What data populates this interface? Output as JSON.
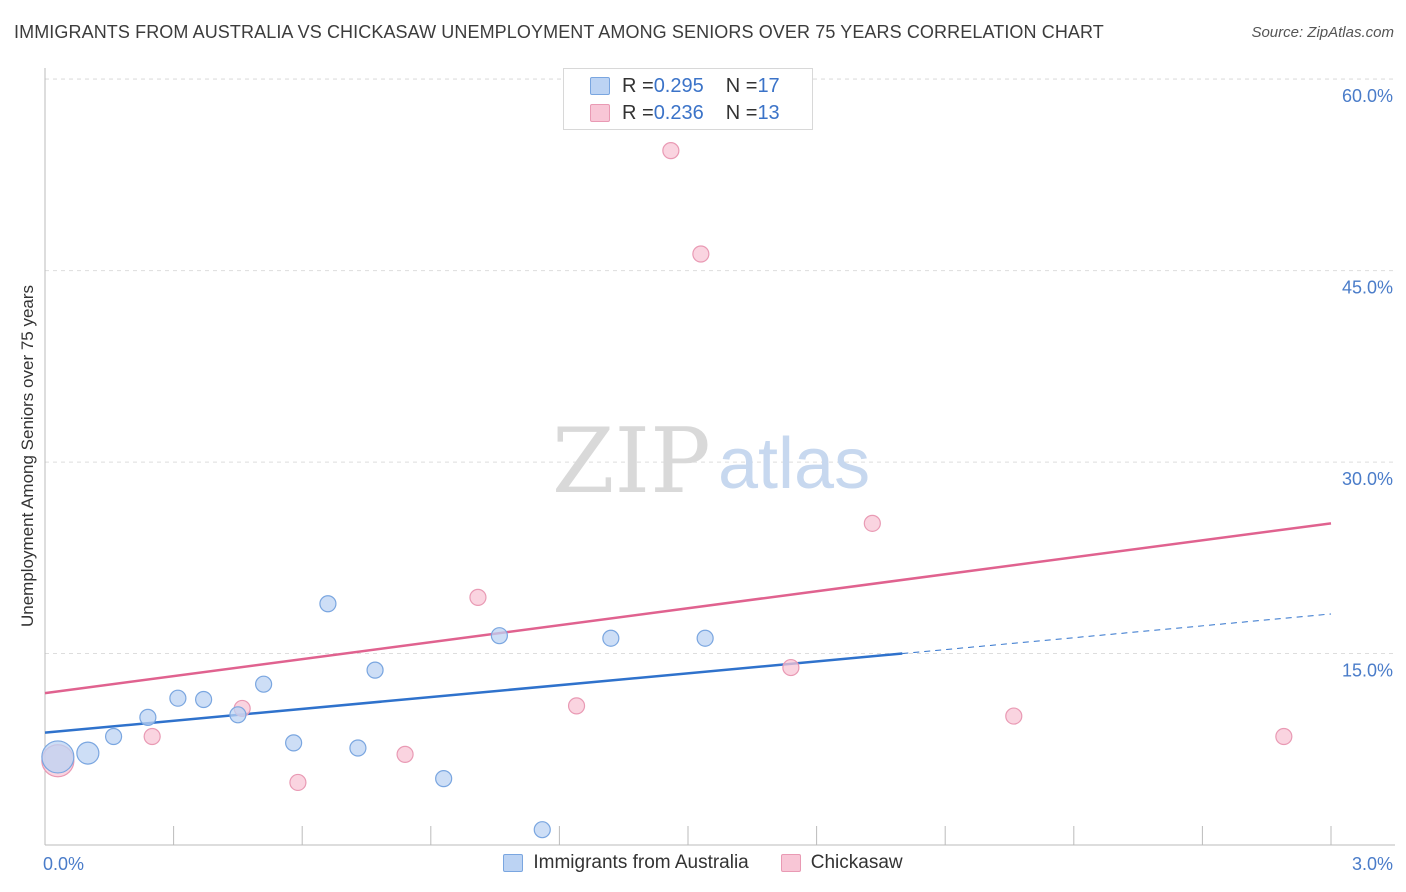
{
  "title": "IMMIGRANTS FROM AUSTRALIA VS CHICKASAW UNEMPLOYMENT AMONG SENIORS OVER 75 YEARS CORRELATION CHART",
  "source": "Source: ZipAtlas.com",
  "watermark": {
    "zip": "ZIP",
    "atlas": "atlas"
  },
  "colors": {
    "blue_fill": "#bcd3f3",
    "blue_stroke": "#7aa6e0",
    "blue_line": "#2f72cc",
    "pink_fill": "#f8c6d6",
    "pink_stroke": "#e99ab4",
    "pink_line": "#e0628f",
    "axis_label": "#4a7cc9",
    "grid": "#dddddd"
  },
  "legend_top": {
    "rows": [
      {
        "r_label": "R = ",
        "r_value": "0.295",
        "n_label": "N = ",
        "n_value": "17"
      },
      {
        "r_label": "R = ",
        "r_value": "0.236",
        "n_label": "N = ",
        "n_value": "13"
      }
    ]
  },
  "legend_bottom": [
    "Immigrants from Australia",
    "Chickasaw"
  ],
  "chart_data": {
    "type": "scatter",
    "title": "IMMIGRANTS FROM AUSTRALIA VS CHICKASAW UNEMPLOYMENT AMONG SENIORS OVER 75 YEARS CORRELATION CHART",
    "xlabel": "",
    "ylabel": "Unemployment Among Seniors over 75 years",
    "xlim": [
      0.0,
      3.0
    ],
    "ylim": [
      0.0,
      61.5
    ],
    "x_tick_labels": [
      "0.0%",
      "3.0%"
    ],
    "y_ticks": [
      15.0,
      30.0,
      45.0,
      60.0
    ],
    "y_tick_labels": [
      "15.0%",
      "30.0%",
      "45.0%",
      "60.0%"
    ],
    "grid": true,
    "series": [
      {
        "name": "Immigrants from Australia",
        "color": "#bcd3f3",
        "points": [
          {
            "x": 0.03,
            "y": 6.9,
            "size": "large"
          },
          {
            "x": 0.1,
            "y": 7.2,
            "size": "medium"
          },
          {
            "x": 0.16,
            "y": 8.5,
            "size": "small"
          },
          {
            "x": 0.24,
            "y": 10.0,
            "size": "small"
          },
          {
            "x": 0.31,
            "y": 11.5,
            "size": "small"
          },
          {
            "x": 0.37,
            "y": 11.4,
            "size": "small"
          },
          {
            "x": 0.45,
            "y": 10.2,
            "size": "small"
          },
          {
            "x": 0.51,
            "y": 12.6,
            "size": "small"
          },
          {
            "x": 0.58,
            "y": 8.0,
            "size": "small"
          },
          {
            "x": 0.66,
            "y": 18.9,
            "size": "small"
          },
          {
            "x": 0.73,
            "y": 7.6,
            "size": "small"
          },
          {
            "x": 0.77,
            "y": 13.7,
            "size": "small"
          },
          {
            "x": 0.93,
            "y": 5.2,
            "size": "small"
          },
          {
            "x": 1.06,
            "y": 16.4,
            "size": "small"
          },
          {
            "x": 1.16,
            "y": 1.2,
            "size": "small"
          },
          {
            "x": 1.32,
            "y": 16.2,
            "size": "small"
          },
          {
            "x": 1.54,
            "y": 16.2,
            "size": "small"
          }
        ],
        "trend": {
          "x0": 0.0,
          "y0": 8.8,
          "x1": 2.0,
          "y1": 15.0,
          "dashed_to_x": 3.0,
          "dashed_to_y": 18.1
        }
      },
      {
        "name": "Chickasaw",
        "color": "#f8c6d6",
        "points": [
          {
            "x": 0.03,
            "y": 6.6,
            "size": "large"
          },
          {
            "x": 0.25,
            "y": 8.5,
            "size": "small"
          },
          {
            "x": 0.46,
            "y": 10.7,
            "size": "small"
          },
          {
            "x": 0.59,
            "y": 4.9,
            "size": "small"
          },
          {
            "x": 0.84,
            "y": 7.1,
            "size": "small"
          },
          {
            "x": 1.01,
            "y": 19.4,
            "size": "small"
          },
          {
            "x": 1.24,
            "y": 10.9,
            "size": "small"
          },
          {
            "x": 1.46,
            "y": 54.4,
            "size": "small"
          },
          {
            "x": 1.53,
            "y": 46.3,
            "size": "small"
          },
          {
            "x": 1.74,
            "y": 13.9,
            "size": "small"
          },
          {
            "x": 1.93,
            "y": 25.2,
            "size": "small"
          },
          {
            "x": 2.26,
            "y": 10.1,
            "size": "small"
          },
          {
            "x": 2.89,
            "y": 8.5,
            "size": "small"
          }
        ],
        "trend": {
          "x0": 0.0,
          "y0": 11.9,
          "x1": 3.0,
          "y1": 25.2
        }
      }
    ]
  }
}
